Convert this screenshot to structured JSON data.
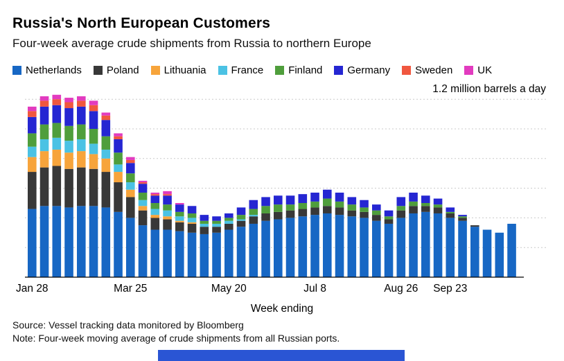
{
  "chart_data": {
    "type": "bar",
    "stacked": true,
    "title": "Russia's North European Customers",
    "subtitle": "Four-week average crude shipments from Russia to northern Europe",
    "annotation": "1.2 million barrels a day",
    "xlabel": "Week ending",
    "ylabel": "",
    "unit": "million barrels a day",
    "ylim": [
      0,
      1.2
    ],
    "grid": true,
    "grid_step": 0.2,
    "legend_position": "top",
    "categories": [
      "Jan 28",
      "Feb 4",
      "Feb 11",
      "Feb 18",
      "Feb 25",
      "Mar 4",
      "Mar 11",
      "Mar 18",
      "Mar 25",
      "Apr 1",
      "Apr 8",
      "Apr 15",
      "Apr 22",
      "Apr 29",
      "May 6",
      "May 13",
      "May 20",
      "May 27",
      "Jun 3",
      "Jun 10",
      "Jun 17",
      "Jun 24",
      "Jul 1",
      "Jul 8",
      "Jul 15",
      "Jul 22",
      "Jul 29",
      "Aug 5",
      "Aug 12",
      "Aug 19",
      "Aug 26",
      "Sep 2",
      "Sep 9",
      "Sep 16",
      "Sep 23",
      "Sep 30",
      "Oct 7",
      "Oct 14",
      "Oct 21",
      "Oct 28"
    ],
    "x_tick_labels": [
      {
        "index": 0,
        "label": "Jan 28"
      },
      {
        "index": 8,
        "label": "Mar 25"
      },
      {
        "index": 16,
        "label": "May 20"
      },
      {
        "index": 23,
        "label": "Jul 8"
      },
      {
        "index": 30,
        "label": "Aug 26"
      },
      {
        "index": 34,
        "label": "Sep 23"
      }
    ],
    "series": [
      {
        "name": "Netherlands",
        "color": "#1767c4",
        "values": [
          0.46,
          0.48,
          0.48,
          0.47,
          0.48,
          0.48,
          0.47,
          0.44,
          0.4,
          0.35,
          0.32,
          0.32,
          0.31,
          0.3,
          0.29,
          0.3,
          0.32,
          0.34,
          0.36,
          0.38,
          0.39,
          0.4,
          0.41,
          0.42,
          0.43,
          0.42,
          0.41,
          0.4,
          0.38,
          0.36,
          0.4,
          0.43,
          0.44,
          0.43,
          0.4,
          0.38,
          0.34,
          0.32,
          0.3,
          0.36
        ]
      },
      {
        "name": "Poland",
        "color": "#383838",
        "values": [
          0.25,
          0.26,
          0.27,
          0.26,
          0.26,
          0.25,
          0.24,
          0.2,
          0.14,
          0.1,
          0.08,
          0.07,
          0.06,
          0.06,
          0.05,
          0.04,
          0.04,
          0.04,
          0.05,
          0.05,
          0.05,
          0.05,
          0.05,
          0.05,
          0.05,
          0.05,
          0.04,
          0.04,
          0.04,
          0.03,
          0.05,
          0.05,
          0.04,
          0.04,
          0.03,
          0.02,
          0.01,
          0,
          0,
          0
        ]
      },
      {
        "name": "Lithuania",
        "color": "#f7a43b",
        "values": [
          0.1,
          0.11,
          0.11,
          0.11,
          0.11,
          0.1,
          0.09,
          0.07,
          0.05,
          0.03,
          0.02,
          0.02,
          0.01,
          0.01,
          0,
          0,
          0,
          0,
          0,
          0,
          0,
          0,
          0,
          0,
          0,
          0,
          0,
          0,
          0,
          0,
          0,
          0,
          0,
          0,
          0,
          0,
          0,
          0,
          0,
          0
        ]
      },
      {
        "name": "France",
        "color": "#4bc2e4",
        "values": [
          0.07,
          0.08,
          0.08,
          0.08,
          0.08,
          0.07,
          0.06,
          0.05,
          0.05,
          0.04,
          0.04,
          0.04,
          0.03,
          0.03,
          0.02,
          0.02,
          0.02,
          0.01,
          0.01,
          0,
          0,
          0,
          0,
          0,
          0,
          0,
          0,
          0,
          0,
          0,
          0,
          0,
          0,
          0,
          0,
          0,
          0,
          0,
          0,
          0
        ]
      },
      {
        "name": "Finland",
        "color": "#4f9e3c",
        "values": [
          0.09,
          0.1,
          0.1,
          0.1,
          0.1,
          0.1,
          0.09,
          0.08,
          0.06,
          0.05,
          0.04,
          0.04,
          0.03,
          0.03,
          0.02,
          0.02,
          0.02,
          0.03,
          0.04,
          0.05,
          0.05,
          0.04,
          0.04,
          0.04,
          0.05,
          0.04,
          0.04,
          0.03,
          0.03,
          0.02,
          0.03,
          0.03,
          0.02,
          0.02,
          0.01,
          0.01,
          0,
          0,
          0,
          0
        ]
      },
      {
        "name": "Germany",
        "color": "#2526d2",
        "values": [
          0.11,
          0.12,
          0.12,
          0.12,
          0.12,
          0.12,
          0.11,
          0.09,
          0.07,
          0.06,
          0.05,
          0.06,
          0.05,
          0.05,
          0.04,
          0.03,
          0.03,
          0.05,
          0.06,
          0.06,
          0.06,
          0.06,
          0.06,
          0.06,
          0.06,
          0.06,
          0.05,
          0.05,
          0.04,
          0.04,
          0.06,
          0.06,
          0.05,
          0.04,
          0.03,
          0.01,
          0,
          0,
          0,
          0
        ]
      },
      {
        "name": "Sweden",
        "color": "#f0573f",
        "values": [
          0.04,
          0.04,
          0.04,
          0.04,
          0.04,
          0.04,
          0.03,
          0.02,
          0.02,
          0.01,
          0.01,
          0.01,
          0,
          0,
          0,
          0,
          0,
          0,
          0,
          0,
          0,
          0,
          0,
          0,
          0,
          0,
          0,
          0,
          0,
          0,
          0,
          0,
          0,
          0,
          0,
          0,
          0,
          0,
          0,
          0
        ]
      },
      {
        "name": "UK",
        "color": "#e23bbf",
        "values": [
          0.03,
          0.03,
          0.03,
          0.03,
          0.03,
          0.03,
          0.02,
          0.02,
          0.02,
          0.01,
          0.01,
          0.02,
          0.01,
          0,
          0,
          0,
          0,
          0,
          0,
          0,
          0,
          0,
          0,
          0,
          0,
          0,
          0,
          0,
          0,
          0,
          0,
          0,
          0,
          0,
          0,
          0,
          0,
          0,
          0,
          0
        ]
      }
    ]
  },
  "footer": {
    "source": "Source: Vessel tracking data monitored by Bloomberg",
    "note": "Note: Four-week moving average of crude shipments from all Russian ports."
  },
  "colors": {
    "axis": "#000000",
    "gridline": "#c9c9c9",
    "bottom_strip": "#2a55d4"
  }
}
